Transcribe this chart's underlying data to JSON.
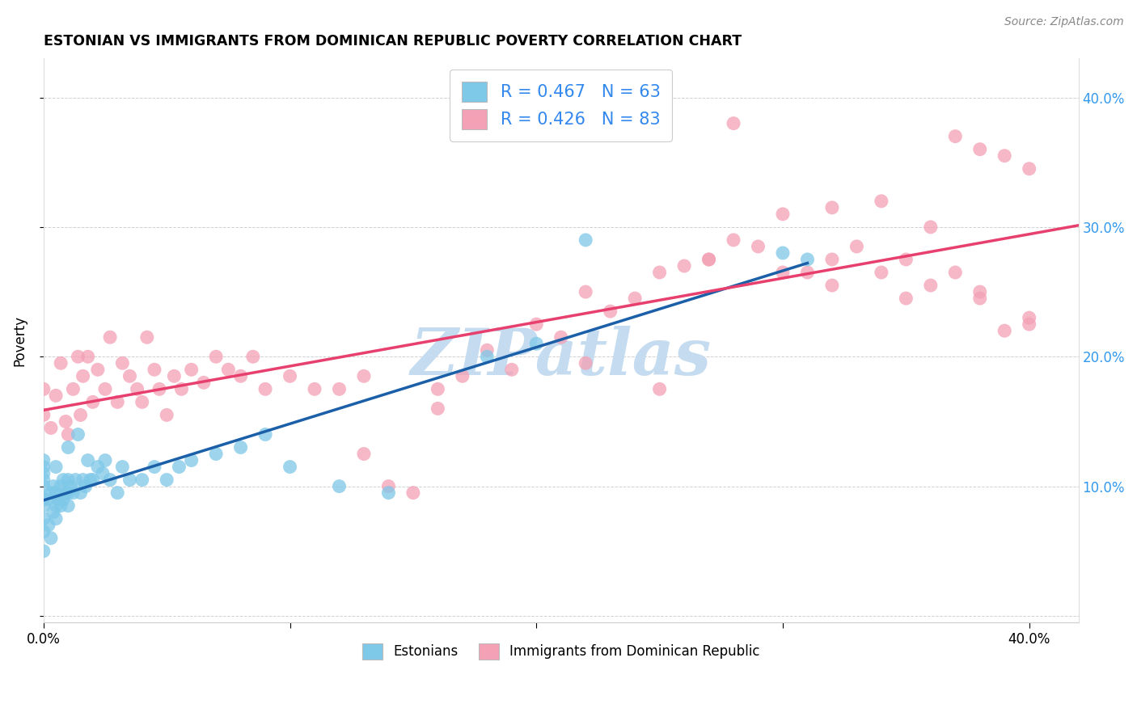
{
  "title": "ESTONIAN VS IMMIGRANTS FROM DOMINICAN REPUBLIC POVERTY CORRELATION CHART",
  "source": "Source: ZipAtlas.com",
  "ylabel": "Poverty",
  "xlim": [
    0.0,
    0.42
  ],
  "ylim": [
    -0.005,
    0.43
  ],
  "legend_label1": "Estonians",
  "legend_label2": "Immigrants from Dominican Republic",
  "r1": 0.467,
  "n1": 63,
  "r2": 0.426,
  "n2": 83,
  "blue_color": "#7EC8E8",
  "pink_color": "#F4A0B5",
  "blue_line_color": "#1A5FA8",
  "pink_line_color": "#E8406E",
  "watermark": "ZIPatlas",
  "watermark_color": "#C5DCF0",
  "blue_x": [
    0.0,
    0.0,
    0.0,
    0.0,
    0.0,
    0.0,
    0.0,
    0.0,
    0.0,
    0.0,
    0.002,
    0.002,
    0.003,
    0.003,
    0.004,
    0.004,
    0.005,
    0.005,
    0.005,
    0.005,
    0.006,
    0.007,
    0.007,
    0.008,
    0.008,
    0.009,
    0.01,
    0.01,
    0.01,
    0.01,
    0.011,
    0.012,
    0.013,
    0.014,
    0.015,
    0.016,
    0.017,
    0.018,
    0.019,
    0.02,
    0.022,
    0.024,
    0.025,
    0.027,
    0.03,
    0.032,
    0.035,
    0.04,
    0.045,
    0.05,
    0.055,
    0.06,
    0.07,
    0.08,
    0.09,
    0.1,
    0.12,
    0.14,
    0.18,
    0.2,
    0.22,
    0.3,
    0.31
  ],
  "blue_y": [
    0.05,
    0.065,
    0.075,
    0.085,
    0.09,
    0.1,
    0.105,
    0.11,
    0.115,
    0.12,
    0.07,
    0.09,
    0.06,
    0.095,
    0.08,
    0.1,
    0.075,
    0.085,
    0.095,
    0.115,
    0.09,
    0.085,
    0.1,
    0.09,
    0.105,
    0.095,
    0.085,
    0.095,
    0.105,
    0.13,
    0.1,
    0.095,
    0.105,
    0.14,
    0.095,
    0.105,
    0.1,
    0.12,
    0.105,
    0.105,
    0.115,
    0.11,
    0.12,
    0.105,
    0.095,
    0.115,
    0.105,
    0.105,
    0.115,
    0.105,
    0.115,
    0.12,
    0.125,
    0.13,
    0.14,
    0.115,
    0.1,
    0.095,
    0.2,
    0.21,
    0.29,
    0.28,
    0.275
  ],
  "pink_x": [
    0.0,
    0.0,
    0.003,
    0.005,
    0.007,
    0.009,
    0.01,
    0.012,
    0.014,
    0.015,
    0.016,
    0.018,
    0.02,
    0.022,
    0.025,
    0.027,
    0.03,
    0.032,
    0.035,
    0.038,
    0.04,
    0.042,
    0.045,
    0.047,
    0.05,
    0.053,
    0.056,
    0.06,
    0.065,
    0.07,
    0.075,
    0.08,
    0.085,
    0.09,
    0.1,
    0.11,
    0.12,
    0.13,
    0.14,
    0.15,
    0.16,
    0.17,
    0.18,
    0.19,
    0.2,
    0.21,
    0.22,
    0.23,
    0.24,
    0.25,
    0.26,
    0.27,
    0.28,
    0.29,
    0.3,
    0.31,
    0.32,
    0.33,
    0.34,
    0.35,
    0.36,
    0.37,
    0.38,
    0.39,
    0.4,
    0.4,
    0.13,
    0.16,
    0.22,
    0.25,
    0.27,
    0.3,
    0.32,
    0.34,
    0.36,
    0.38,
    0.35,
    0.37,
    0.28,
    0.32,
    0.38,
    0.4,
    0.39
  ],
  "pink_y": [
    0.155,
    0.175,
    0.145,
    0.17,
    0.195,
    0.15,
    0.14,
    0.175,
    0.2,
    0.155,
    0.185,
    0.2,
    0.165,
    0.19,
    0.175,
    0.215,
    0.165,
    0.195,
    0.185,
    0.175,
    0.165,
    0.215,
    0.19,
    0.175,
    0.155,
    0.185,
    0.175,
    0.19,
    0.18,
    0.2,
    0.19,
    0.185,
    0.2,
    0.175,
    0.185,
    0.175,
    0.175,
    0.125,
    0.1,
    0.095,
    0.16,
    0.185,
    0.205,
    0.19,
    0.225,
    0.215,
    0.25,
    0.235,
    0.245,
    0.265,
    0.27,
    0.275,
    0.29,
    0.285,
    0.265,
    0.265,
    0.255,
    0.285,
    0.265,
    0.245,
    0.255,
    0.265,
    0.245,
    0.355,
    0.225,
    0.345,
    0.185,
    0.175,
    0.195,
    0.175,
    0.275,
    0.31,
    0.315,
    0.32,
    0.3,
    0.36,
    0.275,
    0.37,
    0.38,
    0.275,
    0.25,
    0.23,
    0.22
  ]
}
